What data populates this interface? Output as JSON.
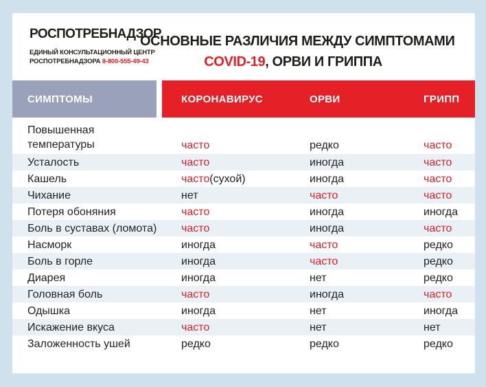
{
  "colors": {
    "page_background": "#cfe1ec",
    "card_background": "#ffffff",
    "accent_red": "#e31e24",
    "band_red": "#e52127",
    "band_gray": "#99a2ba",
    "row_alt_blue": "#e9f1f7",
    "text_black": "#1d1d1b"
  },
  "branding": {
    "org_name": "РОСПОТРЕБНАДЗОР",
    "center_line1": "ЕДИНЫЙ КОНСУЛЬТАЦИОННЫЙ ЦЕНТР",
    "center_line2": "РОСПОТРЕБНАДЗОРА",
    "phone": "8-800-555-49-43"
  },
  "title": {
    "line1": "ОСНОВНЫЕ РАЗЛИЧИЯ МЕЖДУ СИМПТОМАМИ",
    "line2_highlight": "COVID-19",
    "line2_rest": ", ОРВИ И ГРИППА"
  },
  "table": {
    "symptom_header": "СИМПТОМЫ",
    "columns": [
      "КОРОНАВИРУС",
      "ОРВИ",
      "ГРИПП"
    ],
    "rows": [
      {
        "symptom": "Повышенная\nтемпературы",
        "values": [
          {
            "text": "часто",
            "red": true
          },
          {
            "text": "редко",
            "red": false
          },
          {
            "text": "часто",
            "red": true
          }
        ]
      },
      {
        "symptom": "Усталость",
        "values": [
          {
            "text": "часто",
            "red": true
          },
          {
            "text": "иногда",
            "red": false
          },
          {
            "text": "часто",
            "red": true
          }
        ]
      },
      {
        "symptom": "Кашель",
        "values": [
          {
            "text": "часто",
            "red": true,
            "note": "(сухой)"
          },
          {
            "text": "иногда",
            "red": false
          },
          {
            "text": "часто",
            "red": true
          }
        ]
      },
      {
        "symptom": "Чихание",
        "values": [
          {
            "text": "нет",
            "red": false
          },
          {
            "text": "часто",
            "red": true
          },
          {
            "text": "часто",
            "red": true
          }
        ]
      },
      {
        "symptom": "Потеря обоняния",
        "values": [
          {
            "text": "часто",
            "red": true
          },
          {
            "text": "иногда",
            "red": false
          },
          {
            "text": "иногда",
            "red": false
          }
        ]
      },
      {
        "symptom": "Боль в суставах (ломота)",
        "values": [
          {
            "text": "часто",
            "red": true
          },
          {
            "text": "иногда",
            "red": false
          },
          {
            "text": "часто",
            "red": true
          }
        ]
      },
      {
        "symptom": "Насморк",
        "values": [
          {
            "text": "иногда",
            "red": false
          },
          {
            "text": "часто",
            "red": true
          },
          {
            "text": "редко",
            "red": false
          }
        ]
      },
      {
        "symptom": "Боль в горле",
        "values": [
          {
            "text": "иногда",
            "red": false
          },
          {
            "text": "часто",
            "red": true
          },
          {
            "text": "редко",
            "red": false
          }
        ]
      },
      {
        "symptom": "Диарея",
        "values": [
          {
            "text": "иногда",
            "red": false
          },
          {
            "text": "нет",
            "red": false
          },
          {
            "text": "редко",
            "red": false
          }
        ]
      },
      {
        "symptom": "Головная боль",
        "values": [
          {
            "text": "часто",
            "red": true
          },
          {
            "text": "иногда",
            "red": false
          },
          {
            "text": "часто",
            "red": true
          }
        ]
      },
      {
        "symptom": "Одышка",
        "values": [
          {
            "text": "иногда",
            "red": false
          },
          {
            "text": "нет",
            "red": false
          },
          {
            "text": "иногда",
            "red": false
          }
        ]
      },
      {
        "symptom": "Искажение вкуса",
        "values": [
          {
            "text": "часто",
            "red": true
          },
          {
            "text": "нет",
            "red": false
          },
          {
            "text": "нет",
            "red": false
          }
        ]
      },
      {
        "symptom": "Заложенность ушей",
        "values": [
          {
            "text": "редко",
            "red": false
          },
          {
            "text": "редко",
            "red": false
          },
          {
            "text": "редко",
            "red": false
          }
        ]
      }
    ]
  }
}
